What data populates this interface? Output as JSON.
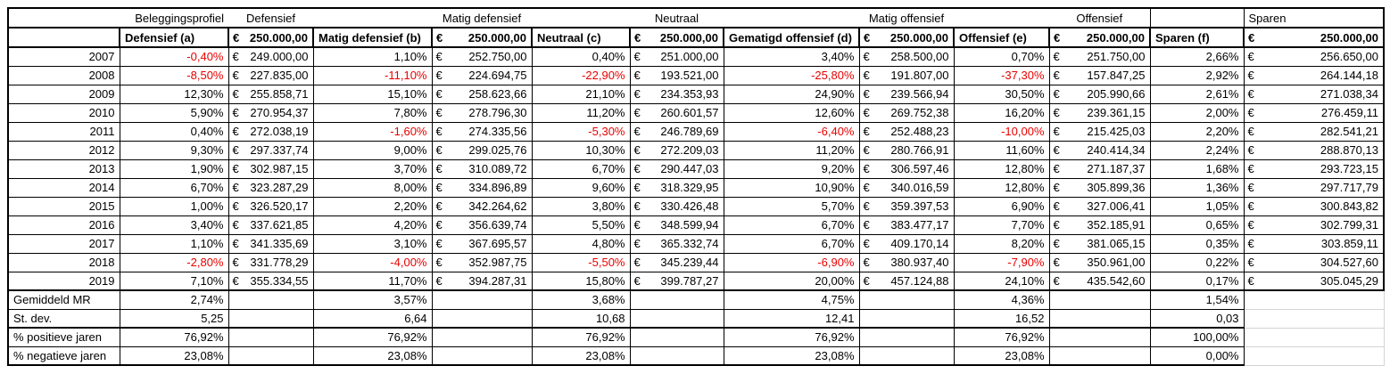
{
  "colors": {
    "negative": "#e80000",
    "border": "#000000",
    "gridline": "#d4d4d4",
    "background": "#ffffff",
    "text": "#000000"
  },
  "header": {
    "row_label": "Beleggingsprofiel",
    "sections": [
      "Defensief",
      "Matig defensief",
      "Neutraal",
      "Matig offensief",
      "Offensief",
      "Sparen"
    ]
  },
  "columns": {
    "profile_headers": [
      "Defensief (a)",
      "Matig defensief (b)",
      "Neutraal (c)",
      "Gematigd offensief (d)",
      "Offensief (e)",
      "Sparen (f)"
    ],
    "currency": "€",
    "initial_value": "250.000,00"
  },
  "rows": [
    {
      "year": "2007",
      "pct": [
        "-0,40%",
        "1,10%",
        "0,40%",
        "3,40%",
        "0,70%",
        "2,66%"
      ],
      "eur": [
        "249.000,00",
        "252.750,00",
        "251.000,00",
        "258.500,00",
        "251.750,00",
        "256.650,00"
      ]
    },
    {
      "year": "2008",
      "pct": [
        "-8,50%",
        "-11,10%",
        "-22,90%",
        "-25,80%",
        "-37,30%",
        "2,92%"
      ],
      "eur": [
        "227.835,00",
        "224.694,75",
        "193.521,00",
        "191.807,00",
        "157.847,25",
        "264.144,18"
      ]
    },
    {
      "year": "2009",
      "pct": [
        "12,30%",
        "15,10%",
        "21,10%",
        "24,90%",
        "30,50%",
        "2,61%"
      ],
      "eur": [
        "255.858,71",
        "258.623,66",
        "234.353,93",
        "239.566,94",
        "205.990,66",
        "271.038,34"
      ]
    },
    {
      "year": "2010",
      "pct": [
        "5,90%",
        "7,80%",
        "11,20%",
        "12,60%",
        "16,20%",
        "2,00%"
      ],
      "eur": [
        "270.954,37",
        "278.796,30",
        "260.601,57",
        "269.752,38",
        "239.361,15",
        "276.459,11"
      ]
    },
    {
      "year": "2011",
      "pct": [
        "0,40%",
        "-1,60%",
        "-5,30%",
        "-6,40%",
        "-10,00%",
        "2,20%"
      ],
      "eur": [
        "272.038,19",
        "274.335,56",
        "246.789,69",
        "252.488,23",
        "215.425,03",
        "282.541,21"
      ]
    },
    {
      "year": "2012",
      "pct": [
        "9,30%",
        "9,00%",
        "10,30%",
        "11,20%",
        "11,60%",
        "2,24%"
      ],
      "eur": [
        "297.337,74",
        "299.025,76",
        "272.209,03",
        "280.766,91",
        "240.414,34",
        "288.870,13"
      ]
    },
    {
      "year": "2013",
      "pct": [
        "1,90%",
        "3,70%",
        "6,70%",
        "9,20%",
        "12,80%",
        "1,68%"
      ],
      "eur": [
        "302.987,15",
        "310.089,72",
        "290.447,03",
        "306.597,46",
        "271.187,37",
        "293.723,15"
      ]
    },
    {
      "year": "2014",
      "pct": [
        "6,70%",
        "8,00%",
        "9,60%",
        "10,90%",
        "12,80%",
        "1,36%"
      ],
      "eur": [
        "323.287,29",
        "334.896,89",
        "318.329,95",
        "340.016,59",
        "305.899,36",
        "297.717,79"
      ]
    },
    {
      "year": "2015",
      "pct": [
        "1,00%",
        "2,20%",
        "3,80%",
        "5,70%",
        "6,90%",
        "1,05%"
      ],
      "eur": [
        "326.520,17",
        "342.264,62",
        "330.426,48",
        "359.397,53",
        "327.006,41",
        "300.843,82"
      ]
    },
    {
      "year": "2016",
      "pct": [
        "3,40%",
        "4,20%",
        "5,50%",
        "6,70%",
        "7,70%",
        "0,65%"
      ],
      "eur": [
        "337.621,85",
        "356.639,74",
        "348.599,94",
        "383.477,17",
        "352.185,91",
        "302.799,31"
      ]
    },
    {
      "year": "2017",
      "pct": [
        "1,10%",
        "3,10%",
        "4,80%",
        "6,70%",
        "8,20%",
        "0,35%"
      ],
      "eur": [
        "341.335,69",
        "367.695,57",
        "365.332,74",
        "409.170,14",
        "381.065,15",
        "303.859,11"
      ]
    },
    {
      "year": "2018",
      "pct": [
        "-2,80%",
        "-4,00%",
        "-5,50%",
        "-6,90%",
        "-7,90%",
        "0,22%"
      ],
      "eur": [
        "331.778,29",
        "352.987,75",
        "345.239,44",
        "380.937,40",
        "350.961,00",
        "304.527,60"
      ]
    },
    {
      "year": "2019",
      "pct": [
        "7,10%",
        "11,70%",
        "15,80%",
        "20,00%",
        "24,10%",
        "0,17%"
      ],
      "eur": [
        "355.334,55",
        "394.287,31",
        "399.787,27",
        "457.124,88",
        "435.542,60",
        "305.045,29"
      ]
    }
  ],
  "stats": [
    {
      "label": "Gemiddeld MR",
      "values": [
        "2,74%",
        "3,57%",
        "3,68%",
        "4,75%",
        "4,36%",
        "1,54%"
      ]
    },
    {
      "label": "St. dev.",
      "values": [
        "5,25",
        "6,64",
        "10,68",
        "12,41",
        "16,52",
        "0,03"
      ]
    },
    {
      "label": "% positieve jaren",
      "values": [
        "76,92%",
        "76,92%",
        "76,92%",
        "76,92%",
        "76,92%",
        "100,00%"
      ]
    },
    {
      "label": "% negatieve jaren",
      "values": [
        "23,08%",
        "23,08%",
        "23,08%",
        "23,08%",
        "23,08%",
        "0,00%"
      ]
    }
  ]
}
